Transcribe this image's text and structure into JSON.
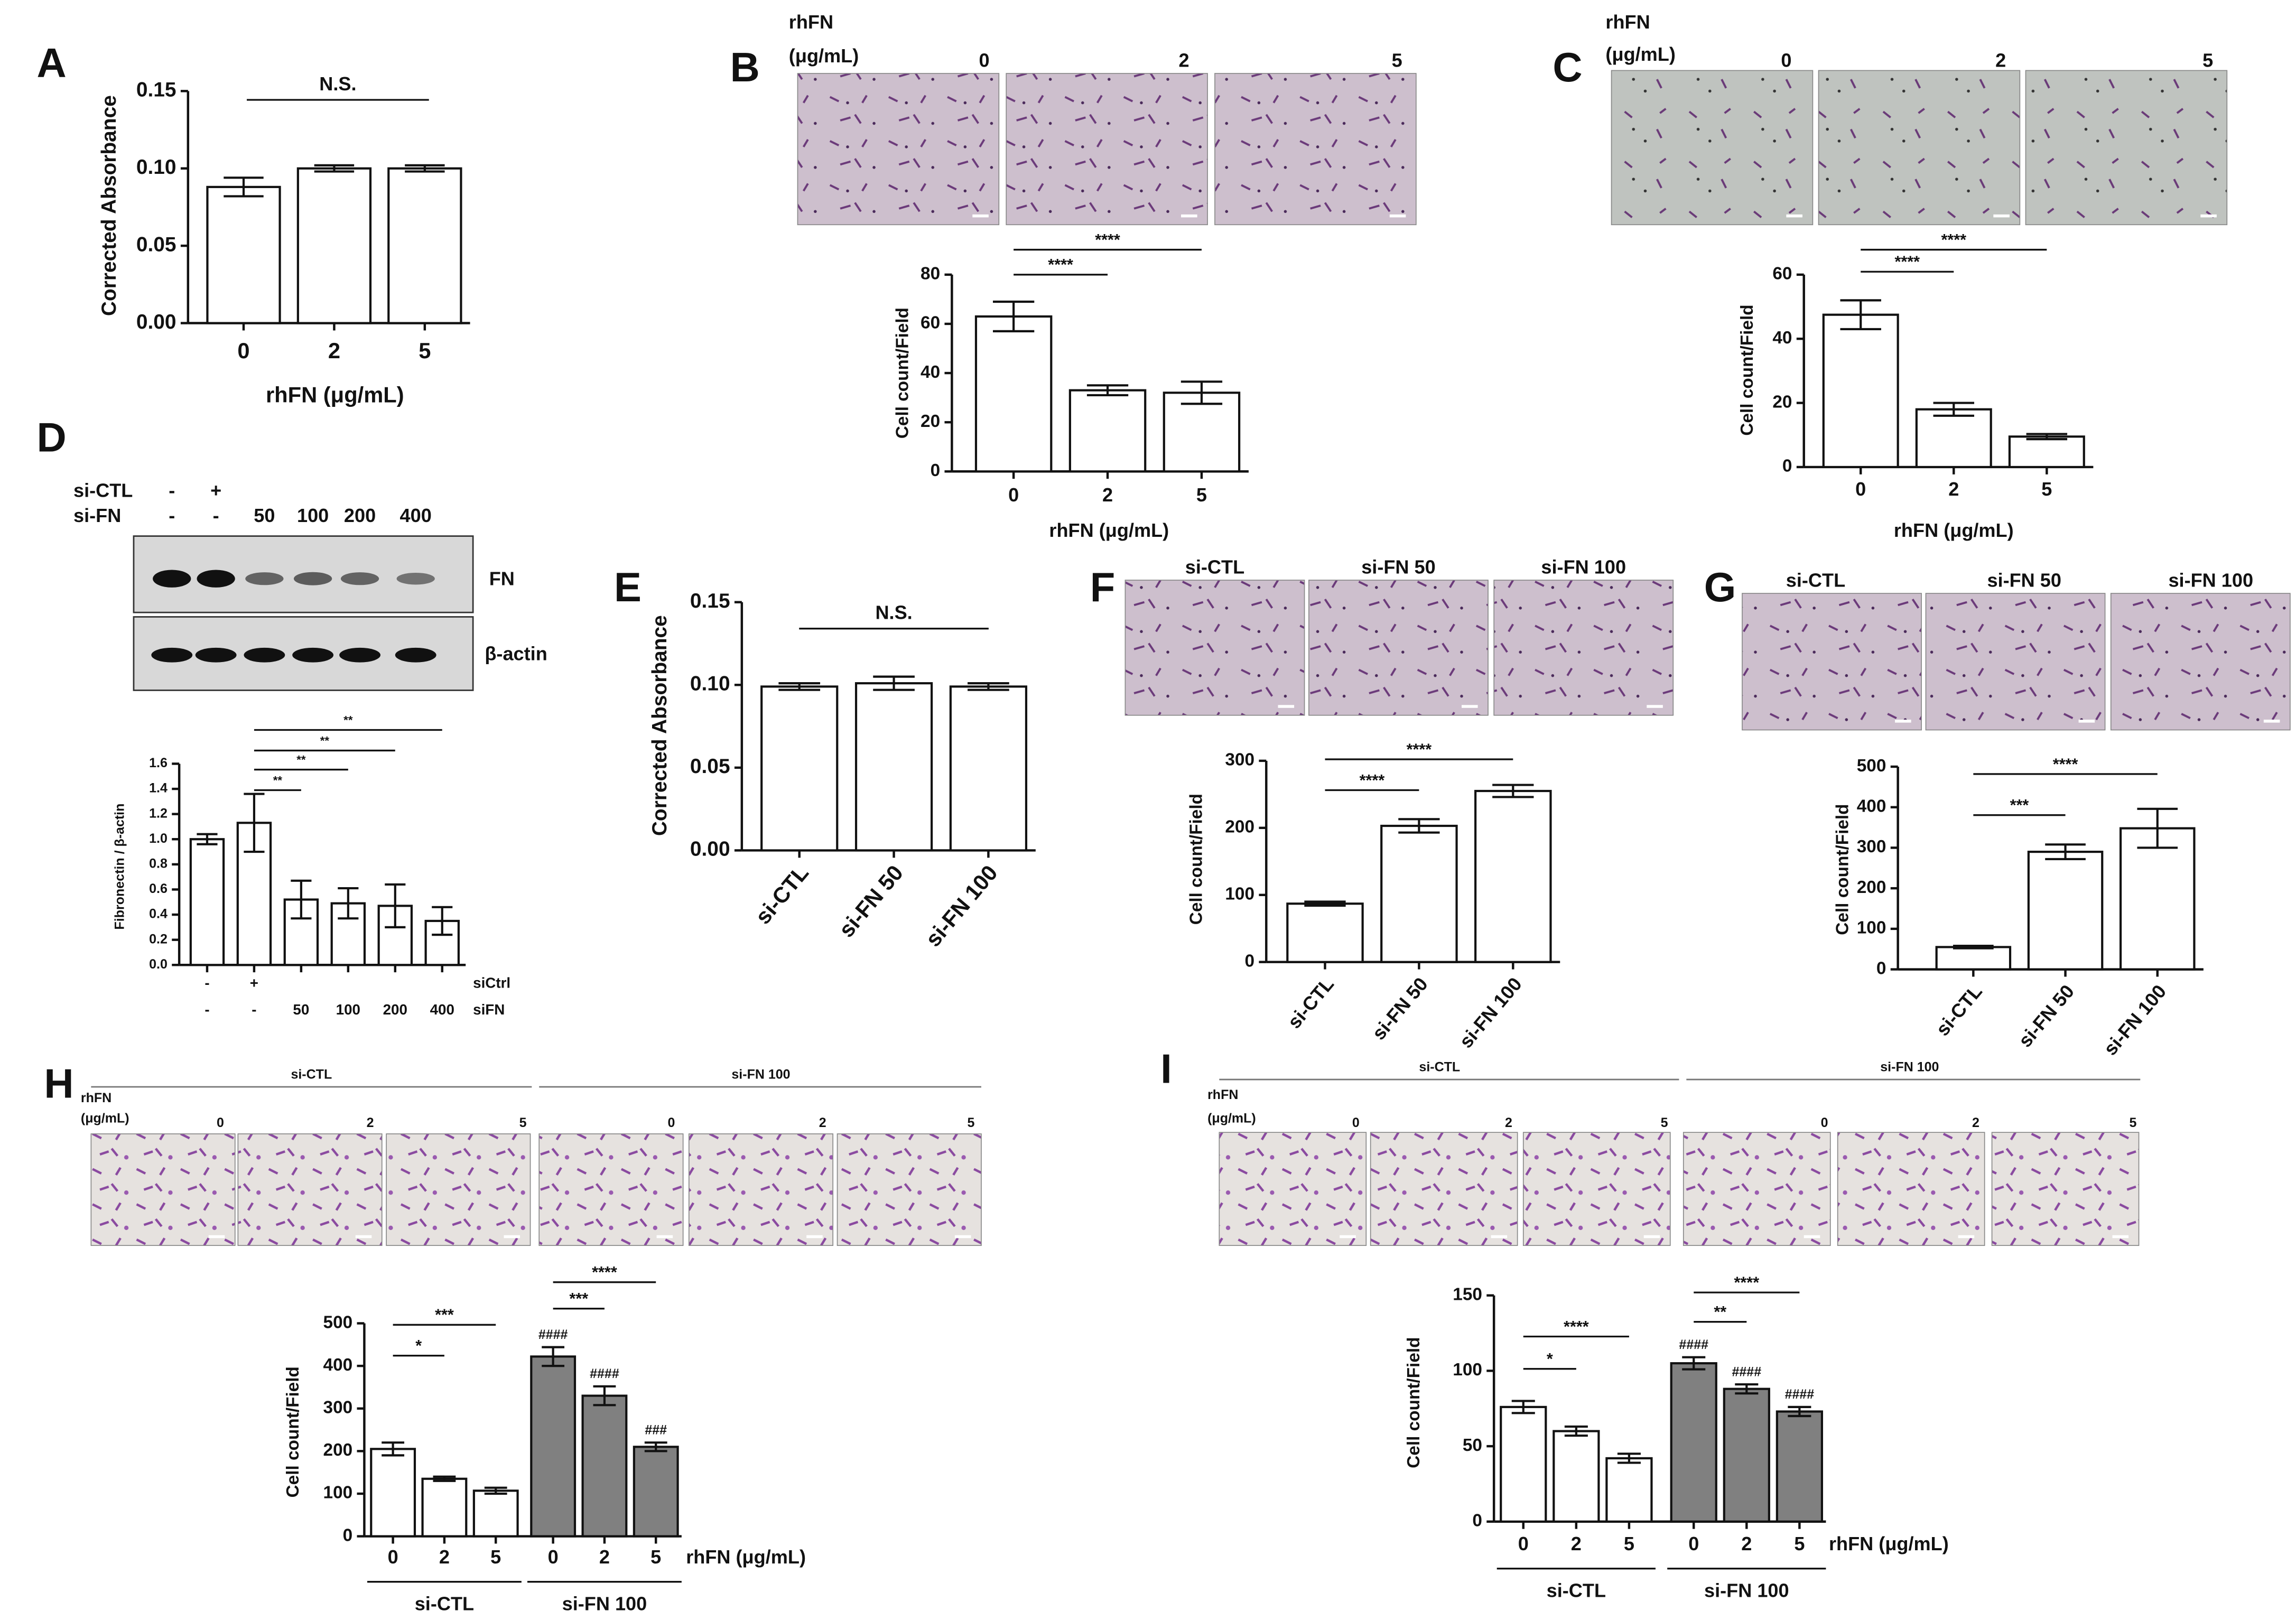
{
  "chart_data": [
    {
      "panel": "A",
      "type": "bar",
      "ylabel": "Corrected Absorbance",
      "xlabel": "rhFN (μg/mL)",
      "categories": [
        "0",
        "2",
        "5"
      ],
      "values": [
        0.088,
        0.1,
        0.1
      ],
      "errors": [
        0.006,
        0.002,
        0.002
      ],
      "color": "#ffffff",
      "ylim": [
        0,
        0.15
      ],
      "yticks": [
        {
          "value": 0,
          "label": "0.00"
        },
        {
          "value": 0.05,
          "label": "0.05"
        },
        {
          "value": 0.1,
          "label": "0.10"
        },
        {
          "value": 0.15,
          "label": "0.15"
        }
      ],
      "annotation": "N.S."
    },
    {
      "panel": "B",
      "type": "bar",
      "image_header": [
        "rhFN",
        "(μg/mL)"
      ],
      "ylabel": "Cell count/Field",
      "xlabel": "rhFN  (μg/mL)",
      "categories": [
        "0",
        "2",
        "5"
      ],
      "values": [
        63,
        33,
        32
      ],
      "errors": [
        6,
        2,
        4.5
      ],
      "color": "#ffffff",
      "ylim": [
        0,
        80
      ],
      "yticks": [
        0,
        20,
        40,
        60,
        80
      ],
      "significance": [
        "****",
        "****"
      ]
    },
    {
      "panel": "C",
      "type": "bar",
      "image_header": [
        "rhFN",
        "(μg/mL)"
      ],
      "ylabel": "Cell count/Field",
      "xlabel": "rhFN  (μg/mL)",
      "categories": [
        "0",
        "2",
        "5"
      ],
      "values": [
        47.5,
        18,
        9.5
      ],
      "errors": [
        4.5,
        2,
        0.8
      ],
      "color": "#ffffff",
      "ylim": [
        0,
        60
      ],
      "yticks": [
        0,
        20,
        40,
        60
      ],
      "significance": [
        "****",
        "****"
      ]
    },
    {
      "panel": "D",
      "type": "bar",
      "blot_rows": [
        "si-CTL",
        "si-FN"
      ],
      "blot_si_ctl": [
        "-",
        "+",
        null,
        null,
        null,
        null
      ],
      "blot_si_fn": [
        "-",
        "-",
        "50",
        "100",
        "200",
        "400"
      ],
      "blot_labels": [
        "FN",
        "β-actin"
      ],
      "ylabel": "Fibronectin / β-actin",
      "categories": [
        "-",
        "+",
        null,
        null,
        null,
        null
      ],
      "categories_row2": [
        "-",
        "-",
        "50",
        "100",
        "200",
        "400"
      ],
      "category_rows": [
        "siCtrl",
        "siFN"
      ],
      "values": [
        1.0,
        1.13,
        0.52,
        0.49,
        0.47,
        0.35
      ],
      "errors": [
        0.04,
        0.23,
        0.15,
        0.12,
        0.17,
        0.11
      ],
      "color": "#ffffff",
      "ylim": [
        0,
        1.6
      ],
      "yticks": [
        {
          "value": 0,
          "label": "0.0"
        },
        {
          "value": 0.2,
          "label": "0.2"
        },
        {
          "value": 0.4,
          "label": "0.4"
        },
        {
          "value": 0.6,
          "label": "0.6"
        },
        {
          "value": 0.8,
          "label": "0.8"
        },
        {
          "value": 1,
          "label": "1.0"
        },
        {
          "value": 1.2,
          "label": "1.2"
        },
        {
          "value": 1.4,
          "label": "1.4"
        },
        {
          "value": 1.6,
          "label": "1.6"
        }
      ],
      "significance": [
        "**",
        "**",
        "**",
        "**"
      ]
    },
    {
      "panel": "E",
      "type": "bar",
      "ylabel": "Corrected Absorbance",
      "categories": [
        "si-CTL",
        "si-FN 50",
        "si-FN 100"
      ],
      "values": [
        0.099,
        0.101,
        0.099
      ],
      "errors": [
        0.002,
        0.004,
        0.002
      ],
      "color": "#ffffff",
      "ylim": [
        0,
        0.15
      ],
      "yticks": [
        {
          "value": 0,
          "label": "0.00"
        },
        {
          "value": 0.05,
          "label": "0.05"
        },
        {
          "value": 0.1,
          "label": "0.10"
        },
        {
          "value": 0.15,
          "label": "0.15"
        }
      ],
      "annotation": "N.S.",
      "rotate_labels": true
    },
    {
      "panel": "F",
      "type": "bar",
      "ylabel": "Cell count/Field",
      "categories": [
        "si-CTL",
        "si-FN 50",
        "si-FN 100"
      ],
      "values": [
        87,
        203,
        255
      ],
      "errors": [
        3,
        10,
        9
      ],
      "color": "#ffffff",
      "ylim": [
        0,
        300
      ],
      "yticks": [
        0,
        100,
        200,
        300
      ],
      "significance": [
        "****",
        "****"
      ],
      "rotate_labels": true
    },
    {
      "panel": "G",
      "type": "bar",
      "ylabel": "Cell count/Field",
      "categories": [
        "si-CTL",
        "si-FN 50",
        "si-FN 100"
      ],
      "values": [
        55,
        290,
        348
      ],
      "errors": [
        3,
        18,
        48
      ],
      "color": "#ffffff",
      "ylim": [
        0,
        500
      ],
      "yticks": [
        0,
        100,
        200,
        300,
        400,
        500
      ],
      "significance": [
        "***",
        "****"
      ],
      "rotate_labels": true
    },
    {
      "panel": "H",
      "type": "bar",
      "image_header": [
        "rhFN",
        "(μg/mL)"
      ],
      "groups": [
        "si-CTL",
        "si-FN 100"
      ],
      "ylabel": "Cell count/Field",
      "xlabel": "rhFN (μg/mL)",
      "categories": [
        "0",
        "2",
        "5",
        "0",
        "2",
        "5"
      ],
      "values": [
        205,
        135,
        107,
        422,
        330,
        210
      ],
      "errors": [
        15,
        5,
        7,
        22,
        22,
        10
      ],
      "colors": [
        "#ffffff",
        "#ffffff",
        "#ffffff",
        "#808080",
        "#808080",
        "#808080"
      ],
      "hash_labels": [
        null,
        null,
        null,
        "####",
        "####",
        "###"
      ],
      "ylim": [
        0,
        500
      ],
      "yticks": [
        0,
        100,
        200,
        300,
        400,
        500
      ],
      "significance": [
        "*",
        "***",
        "***",
        "****"
      ]
    },
    {
      "panel": "I",
      "type": "bar",
      "image_header": [
        "rhFN",
        "(μg/mL)"
      ],
      "groups": [
        "si-CTL",
        "si-FN 100"
      ],
      "ylabel": "Cell count/Field",
      "xlabel": "rhFN (μg/mL)",
      "categories": [
        "0",
        "2",
        "5",
        "0",
        "2",
        "5"
      ],
      "values": [
        76,
        60,
        42,
        105,
        88,
        73
      ],
      "errors": [
        4,
        3,
        3,
        4,
        3,
        3
      ],
      "colors": [
        "#ffffff",
        "#ffffff",
        "#ffffff",
        "#808080",
        "#808080",
        "#808080"
      ],
      "hash_labels": [
        null,
        null,
        null,
        "####",
        "####",
        "####"
      ],
      "ylim": [
        0,
        150
      ],
      "yticks": [
        0,
        50,
        100,
        150
      ],
      "significance": [
        "*",
        "****",
        "**",
        "****"
      ]
    }
  ]
}
